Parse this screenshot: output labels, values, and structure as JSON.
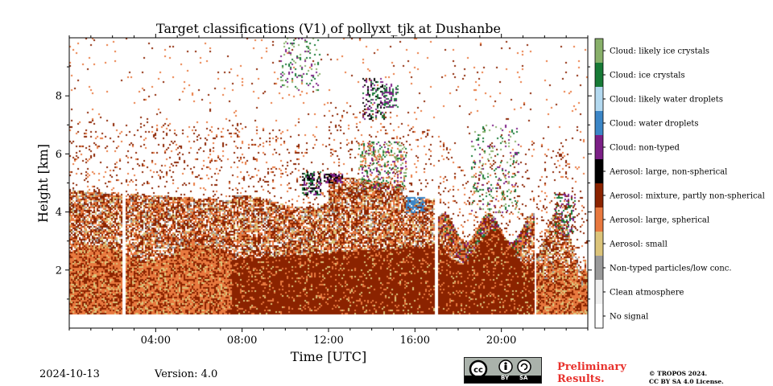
{
  "chart_data": {
    "type": "heatmap",
    "title": "Target classifications (V1) of pollyxt_tjk at Dushanbe",
    "xlabel": "Time [UTC]",
    "ylabel": "Height [km]",
    "xlim": [
      0,
      24
    ],
    "ylim": [
      0,
      10
    ],
    "x_ticks": [
      {
        "value": 4,
        "label": "04:00"
      },
      {
        "value": 8,
        "label": "08:00"
      },
      {
        "value": 12,
        "label": "12:00"
      },
      {
        "value": 16,
        "label": "16:00"
      },
      {
        "value": 20,
        "label": "20:00"
      }
    ],
    "y_ticks": [
      {
        "value": 2,
        "label": "2"
      },
      {
        "value": 4,
        "label": "4"
      },
      {
        "value": 6,
        "label": "6"
      },
      {
        "value": 8,
        "label": "8"
      }
    ],
    "no_data_gaps_utc": [
      [
        2.45,
        2.6
      ],
      [
        16.85,
        17.0
      ],
      [
        21.5,
        21.6
      ]
    ],
    "legend": [
      {
        "label": "Cloud: likely ice crystals",
        "color": "#88b06a"
      },
      {
        "label": "Cloud: ice crystals",
        "color": "#177a36"
      },
      {
        "label": "Cloud: likely water droplets",
        "color": "#b3d9f0"
      },
      {
        "label": "Cloud: water droplets",
        "color": "#3b86c7"
      },
      {
        "label": "Cloud: non-typed",
        "color": "#7b1f86"
      },
      {
        "label": "Aerosol: large, non-spherical",
        "color": "#000000"
      },
      {
        "label": "Aerosol: mixture, partly non-spherical",
        "color": "#8b2300"
      },
      {
        "label": "Aerosol: large, spherical",
        "color": "#e8793f"
      },
      {
        "label": "Aerosol: small",
        "color": "#dcc47a"
      },
      {
        "label": "Non-typed particles/low conc.",
        "color": "#9a9a9a"
      },
      {
        "label": "Clean atmosphere",
        "color": "#f0f0f0"
      },
      {
        "label": "No signal",
        "color": "#ffffff"
      }
    ]
  },
  "footer": {
    "date": "2024-10-13",
    "version": "Version: 4.0",
    "preliminary": "Preliminary Results.",
    "copyright_line1": "© TROPOS 2024.",
    "copyright_line2": "CC BY SA 4.0 License.",
    "cc_by": "BY",
    "cc_sa": "SA"
  }
}
